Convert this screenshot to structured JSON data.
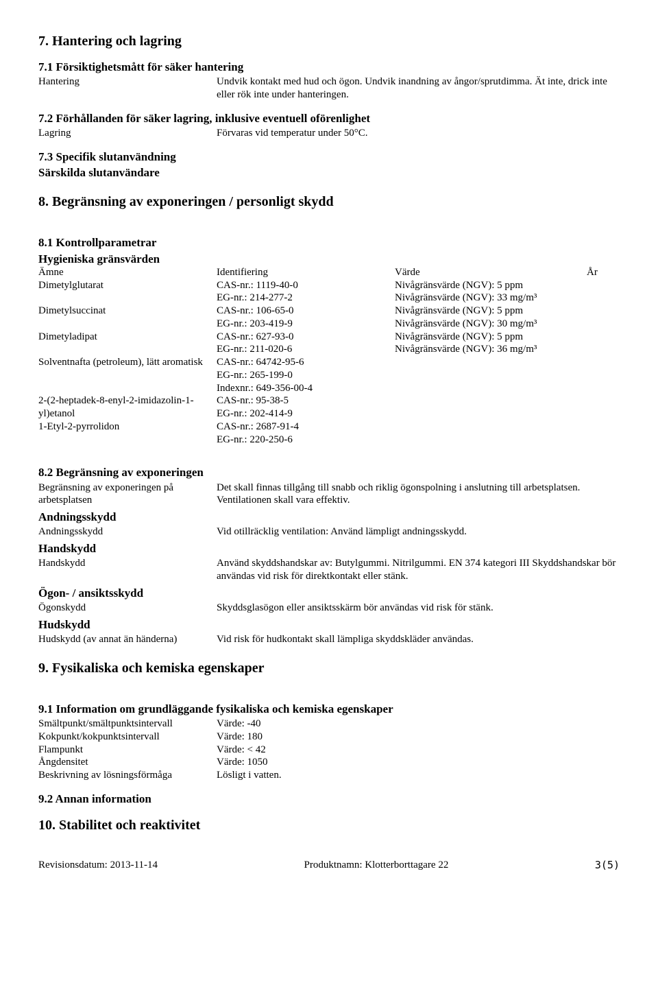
{
  "section7": {
    "title": "7. Hantering och lagring",
    "s71": {
      "title": "7.1 Försiktighetsmått för säker hantering",
      "row": {
        "label": "Hantering",
        "value": "Undvik kontakt med hud och ögon. Undvik inandning av ångor/sprutdimma. Ät inte, drick inte eller rök inte under hanteringen."
      }
    },
    "s72": {
      "title": "7.2 Förhållanden för säker lagring, inklusive eventuell oförenlighet",
      "row": {
        "label": "Lagring",
        "value": "Förvaras vid temperatur under 50°C."
      }
    },
    "s73": {
      "title": "7.3 Specifik slutanvändning",
      "sub": "Särskilda slutanvändare"
    }
  },
  "section8": {
    "title": "8. Begränsning av exponeringen / personligt skydd",
    "s81": {
      "title": "8.1 Kontrollparametrar",
      "sub": "Hygieniska gränsvärden",
      "headers": {
        "amne": "Ämne",
        "id": "Identifiering",
        "varde": "Värde",
        "ar": "År"
      },
      "rows": [
        {
          "amne": "Dimetylglutarat",
          "id1": "CAS-nr.: 1119-40-0",
          "v1": "Nivågränsvärde (NGV): 5 ppm",
          "id2": "EG-nr.: 214-277-2",
          "v2": "Nivågränsvärde (NGV): 33 mg/m³"
        },
        {
          "amne": "Dimetylsuccinat",
          "id1": "CAS-nr.: 106-65-0",
          "v1": "Nivågränsvärde (NGV): 5 ppm",
          "id2": "EG-nr.: 203-419-9",
          "v2": "Nivågränsvärde (NGV): 30 mg/m³"
        },
        {
          "amne": "Dimetyladipat",
          "id1": "CAS-nr.: 627-93-0",
          "v1": "Nivågränsvärde (NGV): 5 ppm",
          "id2": "EG-nr.: 211-020-6",
          "v2": "Nivågränsvärde (NGV): 36 mg/m³"
        },
        {
          "amne": "Solventnafta (petroleum), lätt aromatisk",
          "id1": "CAS-nr.: 64742-95-6",
          "v1": "",
          "id2": "EG-nr.: 265-199-0",
          "v2": "",
          "id3": "Indexnr.: 649-356-00-4"
        },
        {
          "amne": "2-(2-heptadek-8-enyl-2-imidazolin-1-yl)etanol",
          "id1": "CAS-nr.: 95-38-5",
          "v1": "",
          "id2": "EG-nr.: 202-414-9",
          "v2": ""
        },
        {
          "amne": "1-Etyl-2-pyrrolidon",
          "id1": "CAS-nr.: 2687-91-4",
          "v1": "",
          "id2": "EG-nr.: 220-250-6",
          "v2": ""
        }
      ]
    },
    "s82": {
      "title": "8.2 Begränsning av exponeringen",
      "general": {
        "label": "Begränsning av exponeringen på arbetsplatsen",
        "value": "Det skall finnas tillgång till snabb och riklig ögonspolning i anslutning till arbetsplatsen. Ventilationen skall vara effektiv."
      },
      "andning": {
        "title": "Andningsskydd",
        "label": "Andningsskydd",
        "value": "Vid otillräcklig ventilation: Använd lämpligt andningsskydd."
      },
      "hand": {
        "title": "Handskydd",
        "label": "Handskydd",
        "value": "Använd skyddshandskar av: Butylgummi. Nitrilgummi. EN 374 kategori III Skyddshandskar bör användas vid risk för direktkontakt eller stänk."
      },
      "ogon": {
        "title": "Ögon- / ansiktsskydd",
        "label": "Ögonskydd",
        "value": "Skyddsglasögon eller ansiktsskärm bör användas vid risk för stänk."
      },
      "hud": {
        "title": "Hudskydd",
        "label": "Hudskydd (av annat än händerna)",
        "value": "Vid risk för hudkontakt skall lämpliga skyddskläder användas."
      }
    }
  },
  "section9": {
    "title": "9. Fysikaliska och kemiska egenskaper",
    "s91": {
      "title": "9.1 Information om grundläggande fysikaliska och kemiska egenskaper",
      "rows": [
        {
          "label": "Smältpunkt/smältpunktsintervall",
          "value": "Värde: -40"
        },
        {
          "label": "Kokpunkt/kokpunktsintervall",
          "value": "Värde: 180"
        },
        {
          "label": "Flampunkt",
          "value": "Värde: < 42"
        },
        {
          "label": "Ångdensitet",
          "value": "Värde: 1050"
        },
        {
          "label": "Beskrivning av lösningsförmåga",
          "value": "Lösligt i vatten."
        }
      ]
    },
    "s92": {
      "title": "9.2 Annan information"
    }
  },
  "section10": {
    "title": "10. Stabilitet och reaktivitet"
  },
  "footer": {
    "left": "Revisionsdatum: 2013-11-14",
    "center": "Produktnamn: Klotterborttagare 22",
    "right": "3(5)"
  }
}
